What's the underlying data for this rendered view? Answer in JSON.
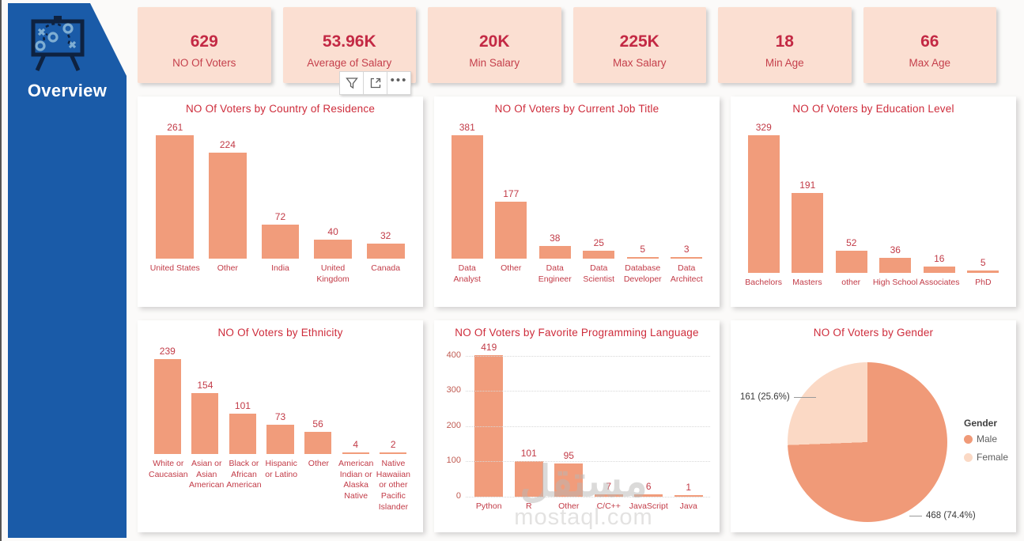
{
  "sidebar": {
    "label": "Overview",
    "icon": "strategy-board-icon",
    "bg": "#1A5BA8"
  },
  "kpis": [
    {
      "value": "629",
      "label": "NO Of Voters"
    },
    {
      "value": "53.96K",
      "label": "Average of Salary"
    },
    {
      "value": "20K",
      "label": "Min Salary"
    },
    {
      "value": "225K",
      "label": "Max Salary"
    },
    {
      "value": "18",
      "label": "Min Age"
    },
    {
      "value": "66",
      "label": "Max Age"
    }
  ],
  "visual_toolbar": {
    "icons": [
      "filter-icon",
      "focus-mode-icon",
      "more-options-icon"
    ],
    "dots": "•••"
  },
  "colors": {
    "bar": "#F19C7B",
    "male": "#F09A78",
    "female": "#FBD9C5",
    "title_red": "#CE2C3B",
    "kpi_bg": "#FBDFD2",
    "sidebar_blue": "#1A5BA8"
  },
  "watermark": {
    "arabic": "مستقل",
    "latin": "mostaql.com"
  },
  "chart_data": [
    {
      "type": "bar",
      "title": "NO Of Voters by Country of Residence",
      "categories": [
        "United States",
        "Other",
        "India",
        "United Kingdom",
        "Canada"
      ],
      "values": [
        261,
        224,
        72,
        40,
        32
      ],
      "xlabel": "",
      "ylabel": "",
      "grid": false,
      "data_labels": true
    },
    {
      "type": "bar",
      "title": "NO Of Voters by Current Job Title",
      "categories": [
        "Data Analyst",
        "Other",
        "Data Engineer",
        "Data Scientist",
        "Database Developer",
        "Data Architect"
      ],
      "values": [
        381,
        177,
        38,
        25,
        5,
        3
      ],
      "xlabel": "",
      "ylabel": "",
      "grid": false,
      "data_labels": true
    },
    {
      "type": "bar",
      "title": "NO Of Voters by Education Level",
      "categories": [
        "Bachelors",
        "Masters",
        "other",
        "High School",
        "Associates",
        "PhD"
      ],
      "values": [
        329,
        191,
        52,
        36,
        16,
        5
      ],
      "xlabel": "",
      "ylabel": "",
      "grid": false,
      "data_labels": true
    },
    {
      "type": "bar",
      "title": "NO Of Voters by Ethnicity",
      "categories": [
        "White or Caucasian",
        "Asian or Asian American",
        "Black or African American",
        "Hispanic or Latino",
        "Other",
        "American Indian or Alaska Native",
        "Native Hawaiian or other Pacific Islander"
      ],
      "values": [
        239,
        154,
        101,
        73,
        56,
        4,
        2
      ],
      "xlabel": "",
      "ylabel": "",
      "grid": false,
      "data_labels": true
    },
    {
      "type": "bar",
      "title": "NO Of Voters by Favorite Programming Language",
      "categories": [
        "Python",
        "R",
        "Other",
        "C/C++",
        "JavaScript",
        "Java"
      ],
      "values": [
        419,
        101,
        95,
        7,
        6,
        1
      ],
      "xlabel": "",
      "ylabel": "",
      "grid": true,
      "data_labels": true,
      "y_axis": {
        "ticks": [
          0,
          100,
          200,
          300,
          400
        ],
        "max": 440
      }
    },
    {
      "type": "pie",
      "title": "NO Of Voters by Gender",
      "legend_title": "Gender",
      "legend_position": "right",
      "series": [
        {
          "name": "Male",
          "value": 468,
          "pct": "74.4%",
          "color": "#F09A78"
        },
        {
          "name": "Female",
          "value": 161,
          "pct": "25.6%",
          "color": "#FBD9C5"
        }
      ],
      "callouts": {
        "female": "161 (25.6%)",
        "male": "468 (74.4%)"
      }
    }
  ]
}
